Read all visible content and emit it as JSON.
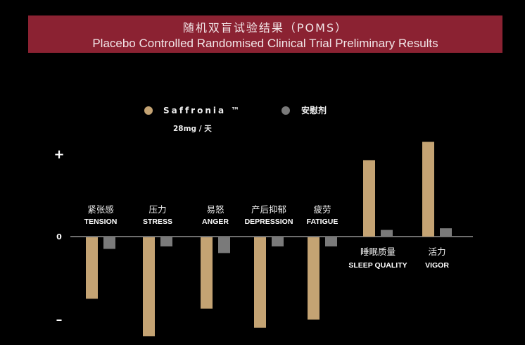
{
  "header": {
    "title_cn": "随机双盲试验结果（POMS）",
    "title_en": "Placebo Controlled Randomised Clinical Trial Preliminary Results",
    "band_color": "#8b2232"
  },
  "chart_data": {
    "type": "bar",
    "title": "随机双盲试验结果（POMS）",
    "subtitle": "Placebo Controlled Randomised Clinical Trial Preliminary Results",
    "y_tick_labels": [
      "+",
      "0",
      "–"
    ],
    "ylim": [
      -1.25,
      1.25
    ],
    "grid": false,
    "legend_placement": "top-center",
    "categories": [
      {
        "cn": "紧张感",
        "en": "TENSION"
      },
      {
        "cn": "压力",
        "en": "STRESS"
      },
      {
        "cn": "易怒",
        "en": "ANGER"
      },
      {
        "cn": "产后抑郁",
        "en": "DEPRESSION"
      },
      {
        "cn": "疲劳",
        "en": "FATIGUE"
      },
      {
        "cn": "睡眠质量",
        "en": "SLEEP QUALITY"
      },
      {
        "cn": "活力",
        "en": "VIGOR"
      }
    ],
    "series": [
      {
        "name": "Saffronia ™",
        "sub": "28mg / 天",
        "color": "#c4a373",
        "values": [
          -0.74,
          -1.19,
          -0.86,
          -1.09,
          -0.99,
          0.92,
          1.14
        ]
      },
      {
        "name": "安慰剂",
        "color": "#7a7a7a",
        "values": [
          -0.14,
          -0.11,
          -0.19,
          -0.11,
          -0.11,
          0.08,
          0.1
        ]
      }
    ]
  }
}
